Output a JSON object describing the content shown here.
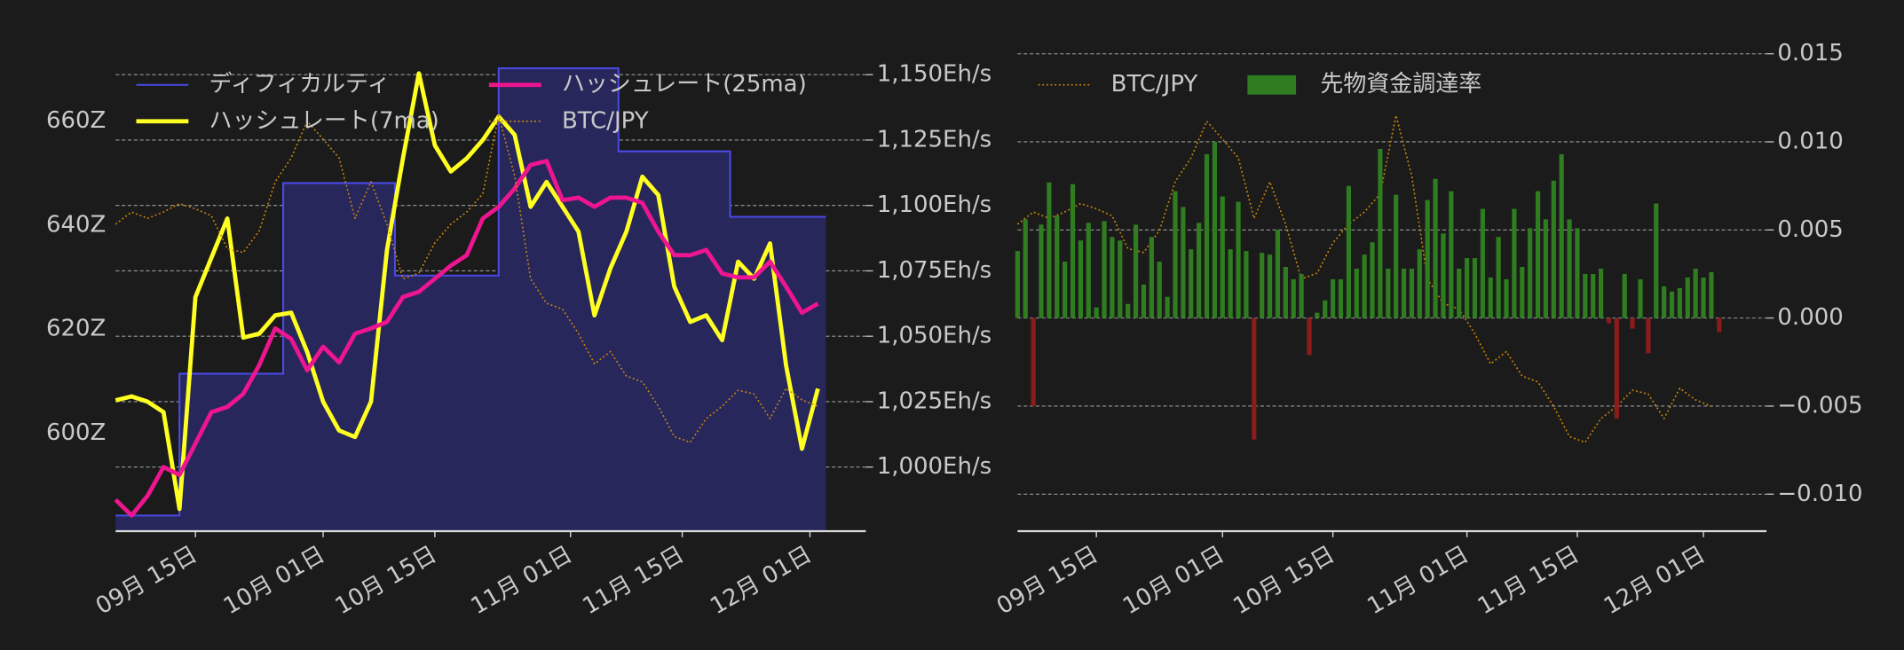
{
  "chart_data": [
    {
      "type": "line",
      "x": [
        "09月 05日",
        "09月 07日",
        "09月 09日",
        "09月 11日",
        "09月 13日",
        "09月 15日",
        "09月 17日",
        "09月 19日",
        "09月 21日",
        "09月 23日",
        "09月 25日",
        "09月 27日",
        "09月 29日",
        "10月 01日",
        "10月 03日",
        "10月 05日",
        "10月 07日",
        "10月 09日",
        "10月 11日",
        "10月 13日",
        "10月 15日",
        "10月 17日",
        "10月 19日",
        "10月 21日",
        "10月 23日",
        "10月 25日",
        "10月 27日",
        "10月 29日",
        "10月 31日",
        "11月 02日",
        "11月 04日",
        "11月 06日",
        "11月 08日",
        "11月 10日",
        "11月 12日",
        "11月 14日",
        "11月 16日",
        "11月 18日",
        "11月 20日",
        "11月 22日",
        "11月 24日",
        "11月 26日",
        "11月 28日",
        "11月 30日",
        "12月 02日"
      ],
      "xlim": [
        "09月 05日",
        "12月 08日"
      ],
      "xticks": [
        "09月 15日",
        "10月 01日",
        "10月 15日",
        "11月 01日",
        "11月 15日",
        "12月 01日"
      ],
      "ylim": [
        581.1,
        674
      ],
      "yticks": [
        {
          "value": 600,
          "label": "600Z"
        },
        {
          "value": 620,
          "label": "620Z"
        },
        {
          "value": 640,
          "label": "640Z"
        },
        {
          "value": 660,
          "label": "660Z"
        }
      ],
      "y2lim": [
        975.5,
        1160
      ],
      "y2ticks": [
        {
          "value": 1000,
          "label": "1,000Eh/s"
        },
        {
          "value": 1025,
          "label": "1,025Eh/s"
        },
        {
          "value": 1050,
          "label": "1,050Eh/s"
        },
        {
          "value": 1075,
          "label": "1,075Eh/s"
        },
        {
          "value": 1100,
          "label": "1,100Eh/s"
        },
        {
          "value": 1125,
          "label": "1,125Eh/s"
        },
        {
          "value": 1150,
          "label": "1,150Eh/s"
        }
      ],
      "y3lim": [
        12100000,
        19600000
      ],
      "grid": "y2",
      "legend": "upper left",
      "legend_columns": 2,
      "series": [
        {
          "name": "ディフィカルティ",
          "color": "#4a4ae6",
          "style": "step",
          "fill": "#27275c",
          "x": [
            "09月 05日",
            "09月 13日",
            "09月 26日",
            "10月 10日",
            "10月 23日",
            "11月 07日",
            "11月 21日",
            "12月 03日"
          ],
          "values": [
            584.1,
            611.4,
            648.1,
            630.3,
            670.2,
            654.2,
            641.6,
            641.6
          ]
        },
        {
          "name": "ハッシュレート(7ma)",
          "color": "#ffff22",
          "axis": "y2",
          "values": [
            1025.5,
            1027,
            1025,
            1021,
            984,
            1065,
            1080,
            1095,
            1049.5,
            1051,
            1058,
            1059,
            1044,
            1025,
            1014,
            1011.5,
            1025,
            1083,
            1118,
            1150.5,
            1123,
            1113,
            1118,
            1125,
            1134,
            1127,
            1099.5,
            1109,
            1099.5,
            1090,
            1058,
            1076,
            1090,
            1111,
            1104,
            1069,
            1055.5,
            1058,
            1048.5,
            1078.5,
            1072,
            1085.5,
            1039,
            1007,
            1030
          ]
        },
        {
          "name": "ハッシュレート(25ma)",
          "color": "#ee1590",
          "axis": "y2",
          "values": [
            987.5,
            981.5,
            989,
            1000,
            997,
            1009,
            1021,
            1023,
            1028,
            1039,
            1053,
            1049,
            1037,
            1046,
            1040,
            1051,
            1053,
            1055.5,
            1065,
            1067,
            1072,
            1077,
            1081,
            1095,
            1099.5,
            1106.5,
            1115.5,
            1117,
            1102,
            1103,
            1099.5,
            1103,
            1103,
            1101,
            1090,
            1081,
            1081,
            1083,
            1074,
            1072.5,
            1072.5,
            1078.5,
            1069,
            1059,
            1062.5
          ]
        },
        {
          "name": "BTC/JPY",
          "color": "#c8860a",
          "axis": "y3",
          "linestyle": "dotted",
          "values": [
            16870000,
            17060000,
            16960000,
            17060000,
            17190000,
            17110000,
            17000000,
            16490000,
            16430000,
            16770000,
            17530000,
            17900000,
            18470000,
            18190000,
            17900000,
            16960000,
            17530000,
            16870000,
            16020000,
            16110000,
            16580000,
            16870000,
            17060000,
            17340000,
            18560000,
            17620000,
            16020000,
            15640000,
            15550000,
            15170000,
            14700000,
            14890000,
            14510000,
            14420000,
            14040000,
            13570000,
            13480000,
            13850000,
            14040000,
            14290000,
            14230000,
            13850000,
            14320000,
            14140000,
            14040000
          ]
        }
      ]
    },
    {
      "type": "bar",
      "x": [
        "09月 05日",
        "09月 06日",
        "09月 07日",
        "09月 08日",
        "09月 09日",
        "09月 10日",
        "09月 11日",
        "09月 12日",
        "09月 13日",
        "09月 14日",
        "09月 15日",
        "09月 16日",
        "09月 17日",
        "09月 18日",
        "09月 19日",
        "09月 20日",
        "09月 21日",
        "09月 22日",
        "09月 23日",
        "09月 24日",
        "09月 25日",
        "09月 26日",
        "09月 27日",
        "09月 28日",
        "09月 29日",
        "09月 30日",
        "10月 01日",
        "10月 02日",
        "10月 03日",
        "10月 04日",
        "10月 05日",
        "10月 06日",
        "10月 07日",
        "10月 08日",
        "10月 09日",
        "10月 10日",
        "10月 11日",
        "10月 12日",
        "10月 13日",
        "10月 14日",
        "10月 15日",
        "10月 16日",
        "10月 17日",
        "10月 18日",
        "10月 19日",
        "10月 20日",
        "10月 21日",
        "10月 22日",
        "10月 23日",
        "10月 24日",
        "10月 25日",
        "10月 26日",
        "10月 27日",
        "10月 28日",
        "10月 29日",
        "10月 30日",
        "10月 31日",
        "11月 01日",
        "11月 02日",
        "11月 03日",
        "11月 04日",
        "11月 05日",
        "11月 06日",
        "11月 07日",
        "11月 08日",
        "11月 09日",
        "11月 10日",
        "11月 11日",
        "11月 12日",
        "11月 13日",
        "11月 14日",
        "11月 15日",
        "11月 16日",
        "11月 17日",
        "11月 18日",
        "11月 19日",
        "11月 20日",
        "11月 21日",
        "11月 22日",
        "11月 23日",
        "11月 24日",
        "11月 25日",
        "11月 26日",
        "11月 27日",
        "11月 28日",
        "11月 29日",
        "11月 30日",
        "12月 01日",
        "12月 02日",
        "12月 03日"
      ],
      "xlim": [
        "09月 05日",
        "12月 09日"
      ],
      "xticks": [
        "09月 15日",
        "10月 01日",
        "10月 15日",
        "11月 01日",
        "11月 15日",
        "12月 01日"
      ],
      "ylim": [
        -0.0121,
        0.0153
      ],
      "yticks": [
        {
          "value": 0.015,
          "label": "0.015"
        },
        {
          "value": 0.01,
          "label": "0.010"
        },
        {
          "value": 0.005,
          "label": "0.005"
        },
        {
          "value": 0,
          "label": "0.000"
        },
        {
          "value": -0.005,
          "label": "−0.005"
        },
        {
          "value": -0.01,
          "label": "−0.010"
        }
      ],
      "y_axis_side": "right",
      "y2lim": [
        12100000,
        19600000
      ],
      "grid": "y",
      "legend": "upper left",
      "legend_columns": 2,
      "series": [
        {
          "name": "BTC/JPY",
          "type": "line",
          "color": "#c8860a",
          "axis": "y2",
          "linestyle": "dotted",
          "x": [
            "09月 05日",
            "09月 07日",
            "09月 09日",
            "09月 11日",
            "09月 13日",
            "09月 15日",
            "09月 17日",
            "09月 19日",
            "09月 21日",
            "09月 23日",
            "09月 25日",
            "09月 27日",
            "09月 29日",
            "10月 01日",
            "10月 03日",
            "10月 05日",
            "10月 07日",
            "10月 09日",
            "10月 11日",
            "10月 13日",
            "10月 15日",
            "10月 17日",
            "10月 19日",
            "10月 21日",
            "10月 23日",
            "10月 25日",
            "10月 27日",
            "10月 29日",
            "10月 31日",
            "11月 02日",
            "11月 04日",
            "11月 06日",
            "11月 08日",
            "11月 10日",
            "11月 12日",
            "11月 14日",
            "11月 16日",
            "11月 18日",
            "11月 20日",
            "11月 22日",
            "11月 24日",
            "11月 26日",
            "11月 28日",
            "11月 30日",
            "12月 02日"
          ],
          "values": [
            16870000,
            17060000,
            16960000,
            17060000,
            17190000,
            17110000,
            17000000,
            16490000,
            16430000,
            16770000,
            17530000,
            17900000,
            18470000,
            18190000,
            17900000,
            16960000,
            17530000,
            16870000,
            16020000,
            16110000,
            16580000,
            16870000,
            17060000,
            17340000,
            18560000,
            17620000,
            16020000,
            15640000,
            15550000,
            15170000,
            14700000,
            14890000,
            14510000,
            14420000,
            14040000,
            13570000,
            13480000,
            13850000,
            14040000,
            14290000,
            14230000,
            13850000,
            14320000,
            14140000,
            14040000
          ]
        },
        {
          "name": "先物資金調達率",
          "type": "bar",
          "color": "#2f7d20",
          "negative_color": "#8a1c1c",
          "values": [
            0.0038,
            0.0056,
            -0.005,
            0.0053,
            0.0077,
            0.0058,
            0.0032,
            0.0076,
            0.0044,
            0.0054,
            0.0006,
            0.0055,
            0.0046,
            0.0044,
            0.0008,
            0.0053,
            0.0019,
            0.0046,
            0.0032,
            0.0012,
            0.0072,
            0.0063,
            0.0039,
            0.0054,
            0.0093,
            0.01,
            0.0069,
            0.0039,
            0.0066,
            0.0038,
            -0.0069,
            0.0037,
            0.0036,
            0.005,
            0.0029,
            0.0022,
            0.0025,
            -0.0021,
            0.0003,
            0.001,
            0.0022,
            0.0022,
            0.0075,
            0.0028,
            0.0036,
            0.0043,
            0.0096,
            0.0028,
            0.007,
            0.0028,
            0.0028,
            0.0039,
            0.0067,
            0.0079,
            0.0048,
            0.0072,
            0.0028,
            0.0034,
            0.0034,
            0.0062,
            0.0023,
            0.0046,
            0.0022,
            0.0062,
            0.0029,
            0.0051,
            0.0072,
            0.0056,
            0.0078,
            0.0093,
            0.0056,
            0.0051,
            0.0025,
            0.0025,
            0.0028,
            -0.0003,
            -0.0057,
            0.0025,
            -0.0006,
            0.0022,
            -0.002,
            0.0065,
            0.0018,
            0.0015,
            0.0017,
            0.0023,
            0.0028,
            0.0023,
            0.0026,
            -0.0008
          ]
        }
      ]
    }
  ]
}
